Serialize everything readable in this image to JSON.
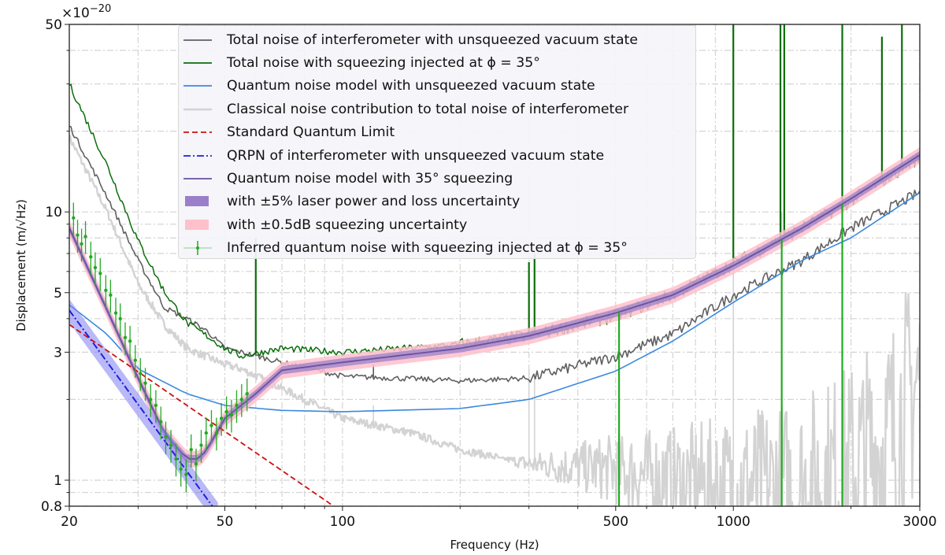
{
  "chart_data": {
    "type": "line",
    "xscale": "log",
    "yscale": "log",
    "xlabel": "Frequency (Hz)",
    "ylabel": "Displacement (m/√Hz)",
    "y_multiplier": "×10",
    "y_multiplier_exp": "−20",
    "xlim": [
      20,
      3000
    ],
    "ylim": [
      0.8,
      50
    ],
    "grid": true,
    "legend_position": "top-center",
    "x_ticks": [
      20,
      50,
      100,
      500,
      1000,
      3000
    ],
    "x_tick_labels": [
      "20",
      "50",
      "100",
      "500",
      "1000",
      "3000"
    ],
    "y_ticks": [
      0.8,
      1,
      3,
      5,
      10,
      50
    ],
    "y_tick_labels": [
      "0.8",
      "1",
      "3",
      "5",
      "10",
      "50"
    ],
    "series": [
      {
        "name": "Classical noise contribution to total noise of interferometer",
        "color": "#d3d3d3",
        "style": "solid",
        "x": [
          20,
          25,
          30,
          35,
          40,
          50,
          55,
          70,
          100,
          150,
          200,
          300,
          500,
          700,
          1000,
          1500,
          2000,
          2500,
          3000
        ],
        "y": [
          19,
          10,
          5.4,
          3.8,
          3.1,
          2.7,
          2.6,
          2.2,
          1.7,
          1.5,
          1.3,
          1.15,
          1.1,
          1.0,
          0.95,
          0.95,
          1.1,
          1.4,
          2.4
        ],
        "spikes": [
          [
            60,
            4.3
          ],
          [
            120,
            1.9
          ],
          [
            300,
            2.6
          ],
          [
            310,
            2.5
          ],
          [
            1000,
            8
          ],
          [
            1330,
            10
          ],
          [
            1900,
            9
          ]
        ]
      },
      {
        "name": "Total noise of interferometer with unsqueezed vacuum state",
        "color": "#606060",
        "style": "solid",
        "x": [
          20,
          25,
          30,
          35,
          40,
          45,
          50,
          55,
          70,
          100,
          200,
          300,
          500,
          700,
          1000,
          1500,
          2000,
          3000
        ],
        "y": [
          21,
          11.4,
          6.6,
          4.4,
          4.0,
          3.6,
          3.1,
          3.0,
          2.75,
          2.44,
          2.35,
          2.4,
          2.9,
          3.5,
          4.9,
          6.6,
          8.7,
          11.8
        ],
        "spikes": [
          [
            42,
            3.9
          ],
          [
            60,
            3.9
          ],
          [
            120,
            2.7
          ]
        ]
      },
      {
        "name": "Total noise with squeezing injected at ϕ = 35°",
        "color": "#0b6e0b",
        "style": "solid",
        "x": [
          20,
          25,
          30,
          35,
          40,
          45,
          50,
          55,
          70,
          100,
          200,
          300,
          500,
          700,
          1000,
          1500,
          2000,
          3000
        ],
        "y": [
          30,
          14.9,
          7.8,
          5.05,
          3.85,
          3.45,
          3.1,
          2.9,
          3.1,
          3.0,
          3.2,
          3.45,
          4.1,
          4.9,
          6.4,
          8.7,
          11,
          16
        ],
        "spikes": [
          [
            60,
            8
          ],
          [
            300,
            6.5
          ],
          [
            310,
            7
          ],
          [
            1000,
            50
          ],
          [
            1320,
            50
          ],
          [
            1350,
            50
          ],
          [
            1900,
            50
          ],
          [
            2400,
            45
          ],
          [
            2700,
            50
          ]
        ]
      },
      {
        "name": "Quantum noise model with unsqueezed vacuum state",
        "color": "#3a88e0",
        "style": "solid",
        "x": [
          20,
          25,
          30,
          40,
          50,
          70,
          100,
          200,
          300,
          500,
          700,
          1000,
          1500,
          2000,
          3000
        ],
        "y": [
          4.5,
          3.5,
          2.6,
          2.1,
          1.9,
          1.82,
          1.8,
          1.85,
          2.0,
          2.55,
          3.3,
          4.6,
          6.6,
          8.0,
          11.8
        ]
      },
      {
        "name": "Standard Quantum Limit",
        "color": "#cc1111",
        "style": "dashed",
        "x": [
          20,
          95
        ],
        "y": [
          3.8,
          0.8
        ]
      },
      {
        "name": "QRPN of interferometer with unsqueezed vacuum state",
        "color": "#1f1fe0",
        "style": "dashdot",
        "x": [
          20,
          48
        ],
        "y": [
          4.3,
          0.75
        ],
        "band_color": "#8080f0",
        "band_fraction": 0.1
      },
      {
        "name": "Quantum noise model with 35° squeezing",
        "color": "#6a4fa0",
        "style": "solid",
        "x": [
          20,
          25,
          30,
          35,
          40,
          43,
          45,
          50,
          60,
          70,
          100,
          200,
          300,
          500,
          700,
          1000,
          1500,
          2000,
          3000
        ],
        "y": [
          8.7,
          4.3,
          2.4,
          1.5,
          1.2,
          1.2,
          1.3,
          1.7,
          2.1,
          2.57,
          2.75,
          3.1,
          3.45,
          4.2,
          4.9,
          6.3,
          8.7,
          11.2,
          16.3
        ]
      }
    ],
    "bands": [
      {
        "name": "with ±0.5dB squeezing uncertainty",
        "color": "#ffc0cb",
        "fraction": 0.07
      },
      {
        "name": "with ±5% laser power and loss uncertainty",
        "color": "#9a80c8",
        "fraction": 0.035
      }
    ],
    "points": {
      "name": "Inferred quantum noise with squeezing injected at ϕ = 35°",
      "color": "#22aa22",
      "error_fraction": 0.14,
      "x": [
        20.5,
        21,
        21.5,
        22,
        22.7,
        23.3,
        24,
        24.8,
        25.5,
        26.3,
        27,
        27.8,
        28.6,
        29.5,
        30.4,
        31.3,
        32.3,
        33.3,
        34.3,
        35.3,
        36.4,
        37.5,
        38.6,
        39.8,
        41,
        42.2,
        43.5,
        44.8,
        46.2,
        47.6,
        49,
        50.5,
        52,
        53.6,
        55.2,
        57
      ],
      "y": [
        9.5,
        8.2,
        7.6,
        8.1,
        6.8,
        6.2,
        5.9,
        5.1,
        4.9,
        4.2,
        4.0,
        3.4,
        3.3,
        2.8,
        2.5,
        2.3,
        2.0,
        1.9,
        1.65,
        1.45,
        1.35,
        1.2,
        1.1,
        1.05,
        1.3,
        1.15,
        1.35,
        1.5,
        1.6,
        1.5,
        1.7,
        1.8,
        1.75,
        1.9,
        2.0,
        2.1
      ]
    }
  },
  "legend": [
    {
      "label": "Total noise of interferometer with unsqueezed vacuum state",
      "marker": "line",
      "color": "#606060"
    },
    {
      "label": "Total noise with squeezing injected at ϕ = 35°",
      "marker": "line",
      "color": "#0b6e0b"
    },
    {
      "label": "Quantum noise model with unsqueezed vacuum state",
      "marker": "line",
      "color": "#3a88e0"
    },
    {
      "label": "Classical noise contribution to total noise of interferometer",
      "marker": "thickline",
      "color": "#d3d3d3"
    },
    {
      "label": "Standard Quantum Limit",
      "marker": "dashed",
      "color": "#cc1111"
    },
    {
      "label": "QRPN of interferometer with unsqueezed vacuum state",
      "marker": "dashdot",
      "color": "#1f1fe0"
    },
    {
      "label": "Quantum noise model with 35° squeezing",
      "marker": "line",
      "color": "#6a4fa0"
    },
    {
      "label": "with ±5% laser power and loss uncertainty",
      "marker": "patch",
      "color": "#9a80c8"
    },
    {
      "label": "with ±0.5dB squeezing uncertainty",
      "marker": "patch",
      "color": "#ffc0cb"
    },
    {
      "label": "Inferred quantum noise with squeezing injected at ϕ = 35°",
      "marker": "errorbar",
      "color": "#22aa22"
    }
  ]
}
